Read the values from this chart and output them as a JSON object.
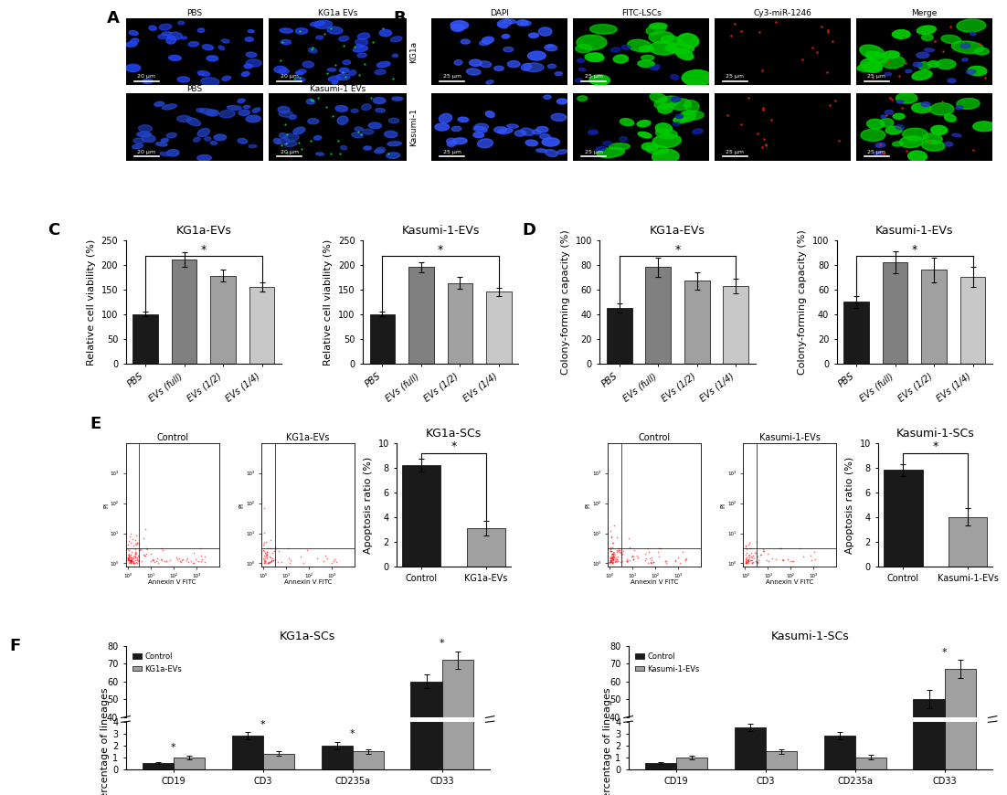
{
  "panel_C_KG1a": {
    "title": "KG1a-EVs",
    "categories": [
      "PBS",
      "EVs (full)",
      "EVs (1/2)",
      "EVs (1/4)"
    ],
    "values": [
      100,
      210,
      178,
      155
    ],
    "errors": [
      5,
      15,
      12,
      10
    ],
    "colors": [
      "#1a1a1a",
      "#808080",
      "#a0a0a0",
      "#c8c8c8"
    ],
    "ylabel": "Relative cell viability (%)",
    "ylim": [
      0,
      250
    ],
    "yticks": [
      0,
      50,
      100,
      150,
      200,
      250
    ],
    "sig_bar": [
      0,
      3
    ],
    "sig_label": "*"
  },
  "panel_C_Kasumi": {
    "title": "Kasumi-1-EVs",
    "categories": [
      "PBS",
      "EVs (full)",
      "EVs (1/2)",
      "EVs (1/4)"
    ],
    "values": [
      100,
      195,
      163,
      145
    ],
    "errors": [
      5,
      10,
      12,
      8
    ],
    "colors": [
      "#1a1a1a",
      "#808080",
      "#a0a0a0",
      "#c8c8c8"
    ],
    "ylabel": "Relative cell viability (%)",
    "ylim": [
      0,
      250
    ],
    "yticks": [
      0,
      50,
      100,
      150,
      200,
      250
    ],
    "sig_bar": [
      0,
      3
    ],
    "sig_label": "*"
  },
  "panel_D_KG1a": {
    "title": "KG1a-EVs",
    "categories": [
      "PBS",
      "EVs (full)",
      "EVs (1/2)",
      "EVs (1/4)"
    ],
    "values": [
      45,
      78,
      67,
      63
    ],
    "errors": [
      4,
      8,
      7,
      6
    ],
    "colors": [
      "#1a1a1a",
      "#808080",
      "#a0a0a0",
      "#c8c8c8"
    ],
    "ylabel": "Colony-forming capacity (%)",
    "ylim": [
      0,
      100
    ],
    "yticks": [
      0,
      20,
      40,
      60,
      80,
      100
    ],
    "sig_bar": [
      0,
      3
    ],
    "sig_label": "*"
  },
  "panel_D_Kasumi": {
    "title": "Kasumi-1-EVs",
    "categories": [
      "PBS",
      "EVs (full)",
      "EVs (1/2)",
      "EVs (1/4)"
    ],
    "values": [
      50,
      82,
      76,
      70
    ],
    "errors": [
      5,
      9,
      10,
      8
    ],
    "colors": [
      "#1a1a1a",
      "#808080",
      "#a0a0a0",
      "#c8c8c8"
    ],
    "ylabel": "Colony-forming capacity (%)",
    "ylim": [
      0,
      100
    ],
    "yticks": [
      0,
      20,
      40,
      60,
      80,
      100
    ],
    "sig_bar": [
      0,
      3
    ],
    "sig_label": "*"
  },
  "panel_E_KG1a": {
    "title": "KG1a-SCs",
    "categories": [
      "Control",
      "KG1a-EVs"
    ],
    "values": [
      8.2,
      3.1
    ],
    "errors": [
      0.5,
      0.6
    ],
    "colors": [
      "#1a1a1a",
      "#a0a0a0"
    ],
    "ylabel": "Apoptosis ratio (%)",
    "ylim": [
      0,
      10
    ],
    "yticks": [
      0,
      2,
      4,
      6,
      8,
      10
    ],
    "sig_bar": [
      0,
      1
    ],
    "sig_label": "*"
  },
  "panel_E_Kasumi": {
    "title": "Kasumi-1-SCs",
    "categories": [
      "Control",
      "Kasumi-1-EVs"
    ],
    "values": [
      7.8,
      4.0
    ],
    "errors": [
      0.5,
      0.7
    ],
    "colors": [
      "#1a1a1a",
      "#a0a0a0"
    ],
    "ylabel": "Apoptosis ratio (%)",
    "ylim": [
      0,
      10
    ],
    "yticks": [
      0,
      2,
      4,
      6,
      8,
      10
    ],
    "sig_bar": [
      0,
      1
    ],
    "sig_label": "*"
  },
  "panel_F_KG1a": {
    "title": "KG1a-SCs",
    "categories": [
      "CD19",
      "CD3",
      "CD235a",
      "CD33"
    ],
    "control_values": [
      0.5,
      2.8,
      2.0,
      60
    ],
    "ev_values": [
      1.0,
      1.3,
      1.5,
      72
    ],
    "control_errors": [
      0.1,
      0.3,
      0.3,
      4
    ],
    "ev_errors": [
      0.15,
      0.2,
      0.2,
      5
    ],
    "control_color": "#1a1a1a",
    "ev_color": "#a0a0a0",
    "ylabel": "Percentage of lineages",
    "legend_control": "Control",
    "legend_ev": "KG1a-EVs",
    "sig_vals": [
      true,
      true,
      true,
      true
    ],
    "ylim_low": [
      0,
      4
    ],
    "ylim_high": [
      40,
      80
    ],
    "yticks_low": [
      0,
      1,
      2,
      3,
      4
    ],
    "yticks_high": [
      40,
      50,
      60,
      70,
      80
    ]
  },
  "panel_F_Kasumi": {
    "title": "Kasumi-1-SCs",
    "categories": [
      "CD19",
      "CD3",
      "CD235a",
      "CD33"
    ],
    "control_values": [
      0.5,
      3.5,
      2.8,
      50
    ],
    "ev_values": [
      1.0,
      1.5,
      1.0,
      67
    ],
    "control_errors": [
      0.1,
      0.3,
      0.3,
      5
    ],
    "ev_errors": [
      0.15,
      0.2,
      0.2,
      5
    ],
    "control_color": "#1a1a1a",
    "ev_color": "#a0a0a0",
    "ylabel": "Percentage of lineages",
    "legend_control": "Control",
    "legend_ev": "Kasumi-1-EVs",
    "sig_vals": [
      false,
      false,
      false,
      true
    ],
    "ylim_low": [
      0,
      4
    ],
    "ylim_high": [
      40,
      80
    ],
    "yticks_low": [
      0,
      1,
      2,
      3,
      4
    ],
    "yticks_high": [
      40,
      50,
      60,
      70,
      80
    ]
  },
  "background_color": "#ffffff",
  "bar_edge_color": "#000000",
  "tick_fontsize": 7,
  "label_fontsize": 8,
  "title_fontsize": 9,
  "panel_label_fontsize": 13
}
